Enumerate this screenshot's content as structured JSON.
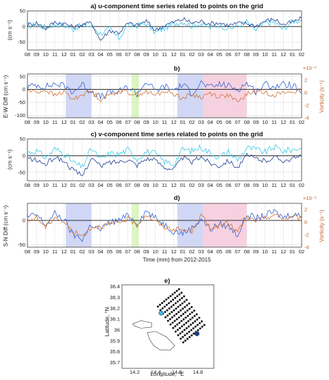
{
  "figure": {
    "x_axis_label": "Time (mm) from 2012-2015",
    "month_ticks": [
      "08",
      "09",
      "10",
      "11",
      "12",
      "01",
      "02",
      "03",
      "04",
      "05",
      "06",
      "07",
      "08",
      "09",
      "10",
      "11",
      "12",
      "01",
      "02",
      "03",
      "04",
      "05",
      "06",
      "07",
      "08",
      "09",
      "10",
      "11",
      "12",
      "01",
      "02"
    ]
  },
  "chart_data": [
    {
      "panel": "a",
      "type": "line",
      "title": "a) u-component time series related to points on the grid",
      "ylabel": "(cm s⁻¹)",
      "ylim": [
        -75,
        50
      ],
      "yticks": [
        50,
        0,
        -50
      ],
      "x_range_months": [
        0,
        30
      ],
      "series": [
        {
          "color": "#35c8e8",
          "values": [
            2,
            6,
            -3,
            8,
            4,
            -8,
            5,
            2,
            -22,
            -8,
            -38,
            5,
            3,
            10,
            -20,
            -6,
            8,
            16,
            2,
            10,
            -4,
            6,
            -8,
            2,
            15,
            -12,
            12,
            14,
            -10,
            18,
            20
          ]
        },
        {
          "color": "#1a3a8f",
          "values": [
            6,
            12,
            -6,
            14,
            10,
            -2,
            6,
            12,
            -44,
            -12,
            -20,
            10,
            4,
            18,
            -12,
            4,
            14,
            24,
            12,
            16,
            10,
            12,
            4,
            10,
            10,
            2,
            18,
            24,
            6,
            14,
            26
          ]
        }
      ]
    },
    {
      "panel": "b",
      "type": "line",
      "title": "b)",
      "ylabel": "E-W Diff (cm s⁻¹)",
      "ylim": [
        -110,
        60
      ],
      "yticks": [
        50,
        0,
        -50,
        -100
      ],
      "y2label": "Vorticity (s⁻¹)",
      "y2exponent": "×10⁻⁵",
      "y2lim": [
        -4,
        3
      ],
      "y2ticks": [
        2,
        0,
        -2,
        -4
      ],
      "shaded_periods": [
        {
          "start": 4.2,
          "end": 7.0,
          "color": "#c9d0f5"
        },
        {
          "start": 11.4,
          "end": 12.2,
          "color": "#d7f5b8"
        },
        {
          "start": 16.4,
          "end": 19.2,
          "color": "#c9d0f5"
        },
        {
          "start": 19.2,
          "end": 24.0,
          "color": "#f7c9dc"
        }
      ],
      "series": [
        {
          "color": "#2f5fd0",
          "values": [
            8,
            18,
            10,
            22,
            14,
            -10,
            20,
            -8,
            -30,
            -12,
            -10,
            10,
            -18,
            30,
            -6,
            12,
            -2,
            18,
            -14,
            26,
            6,
            20,
            14,
            0,
            24,
            -8,
            20,
            12,
            18,
            18,
            -14
          ]
        },
        {
          "color": "#d2702e",
          "values": [
            -4,
            -10,
            -2,
            -24,
            -8,
            -40,
            -18,
            -8,
            -38,
            -22,
            -6,
            -12,
            -20,
            -8,
            -24,
            -6,
            -16,
            -34,
            -20,
            -30,
            -14,
            -28,
            -22,
            -52,
            -18,
            -8,
            -12,
            -20,
            -14,
            -8,
            -6
          ]
        }
      ]
    },
    {
      "panel": "c",
      "type": "line",
      "title": "c) v-component time series related to points on the grid",
      "ylabel": "(cm s⁻¹)",
      "ylim": [
        -75,
        50
      ],
      "yticks": [
        50,
        0,
        -50
      ],
      "series": [
        {
          "color": "#35c8e8",
          "values": [
            10,
            14,
            -6,
            20,
            8,
            -20,
            -35,
            22,
            -12,
            6,
            4,
            18,
            -10,
            12,
            6,
            -18,
            -25,
            20,
            14,
            26,
            8,
            -5,
            12,
            -14,
            24,
            18,
            10,
            26,
            14,
            18,
            24
          ]
        },
        {
          "color": "#1a3a8f",
          "values": [
            -8,
            -14,
            -26,
            -4,
            -16,
            -44,
            -60,
            -6,
            -32,
            -20,
            -18,
            -10,
            -28,
            -8,
            -14,
            -34,
            -40,
            -6,
            -20,
            -2,
            -22,
            -30,
            -14,
            -36,
            0,
            -8,
            -16,
            -4,
            -14,
            -10,
            -2
          ]
        }
      ]
    },
    {
      "panel": "d",
      "type": "line",
      "title": "d)",
      "ylabel": "S-N Diff (cm s⁻¹)",
      "ylim": [
        -55,
        35
      ],
      "yticks": [
        0,
        -50
      ],
      "y2label": "Vorticity (s⁻¹)",
      "y2exponent": "×10⁻⁵",
      "y2lim": [
        -4,
        3
      ],
      "y2ticks": [
        2,
        0,
        -2,
        -4
      ],
      "shaded_periods": [
        {
          "start": 4.2,
          "end": 7.0,
          "color": "#c9d0f5"
        },
        {
          "start": 11.4,
          "end": 12.2,
          "color": "#d7f5b8"
        },
        {
          "start": 16.4,
          "end": 19.2,
          "color": "#c9d0f5"
        },
        {
          "start": 19.2,
          "end": 24.0,
          "color": "#f7c9dc"
        }
      ],
      "series": [
        {
          "color": "#2f5fd0",
          "values": [
            6,
            12,
            -10,
            14,
            2,
            -30,
            -38,
            -8,
            -20,
            -4,
            0,
            10,
            -6,
            20,
            4,
            -8,
            -22,
            -26,
            -16,
            4,
            -18,
            -8,
            -12,
            -30,
            12,
            4,
            10,
            18,
            6,
            14,
            8
          ]
        },
        {
          "color": "#d2702e",
          "values": [
            -2,
            6,
            -14,
            8,
            -4,
            -24,
            -32,
            -14,
            -12,
            -8,
            -6,
            4,
            -10,
            12,
            -2,
            -14,
            -18,
            -20,
            -22,
            10,
            -14,
            -12,
            -6,
            -24,
            6,
            0,
            4,
            12,
            2,
            8,
            4
          ]
        }
      ]
    },
    {
      "panel": "e",
      "type": "scatter",
      "title": "e)",
      "xlabel": "Longitude, °E",
      "ylabel": "Latitude, °N",
      "xlim": [
        14.08,
        14.95
      ],
      "ylim": [
        35.65,
        36.42
      ],
      "xticks": [
        14.2,
        14.4,
        14.6,
        14.8
      ],
      "yticks": [
        35.7,
        35.8,
        35.9,
        36,
        36.1,
        36.2,
        36.3,
        36.4
      ],
      "grid_corners": {
        "west": [
          14.42,
          36.22
        ],
        "north": [
          14.62,
          36.38
        ],
        "east": [
          14.86,
          36.05
        ],
        "south": [
          14.66,
          35.89
        ]
      },
      "grid_dims": [
        11,
        11
      ],
      "highlight_points": [
        {
          "lon": 14.45,
          "lat": 36.16,
          "color": "#40b8e8"
        },
        {
          "lon": 14.79,
          "lat": 35.97,
          "color": "#1a3a8f"
        }
      ]
    }
  ]
}
